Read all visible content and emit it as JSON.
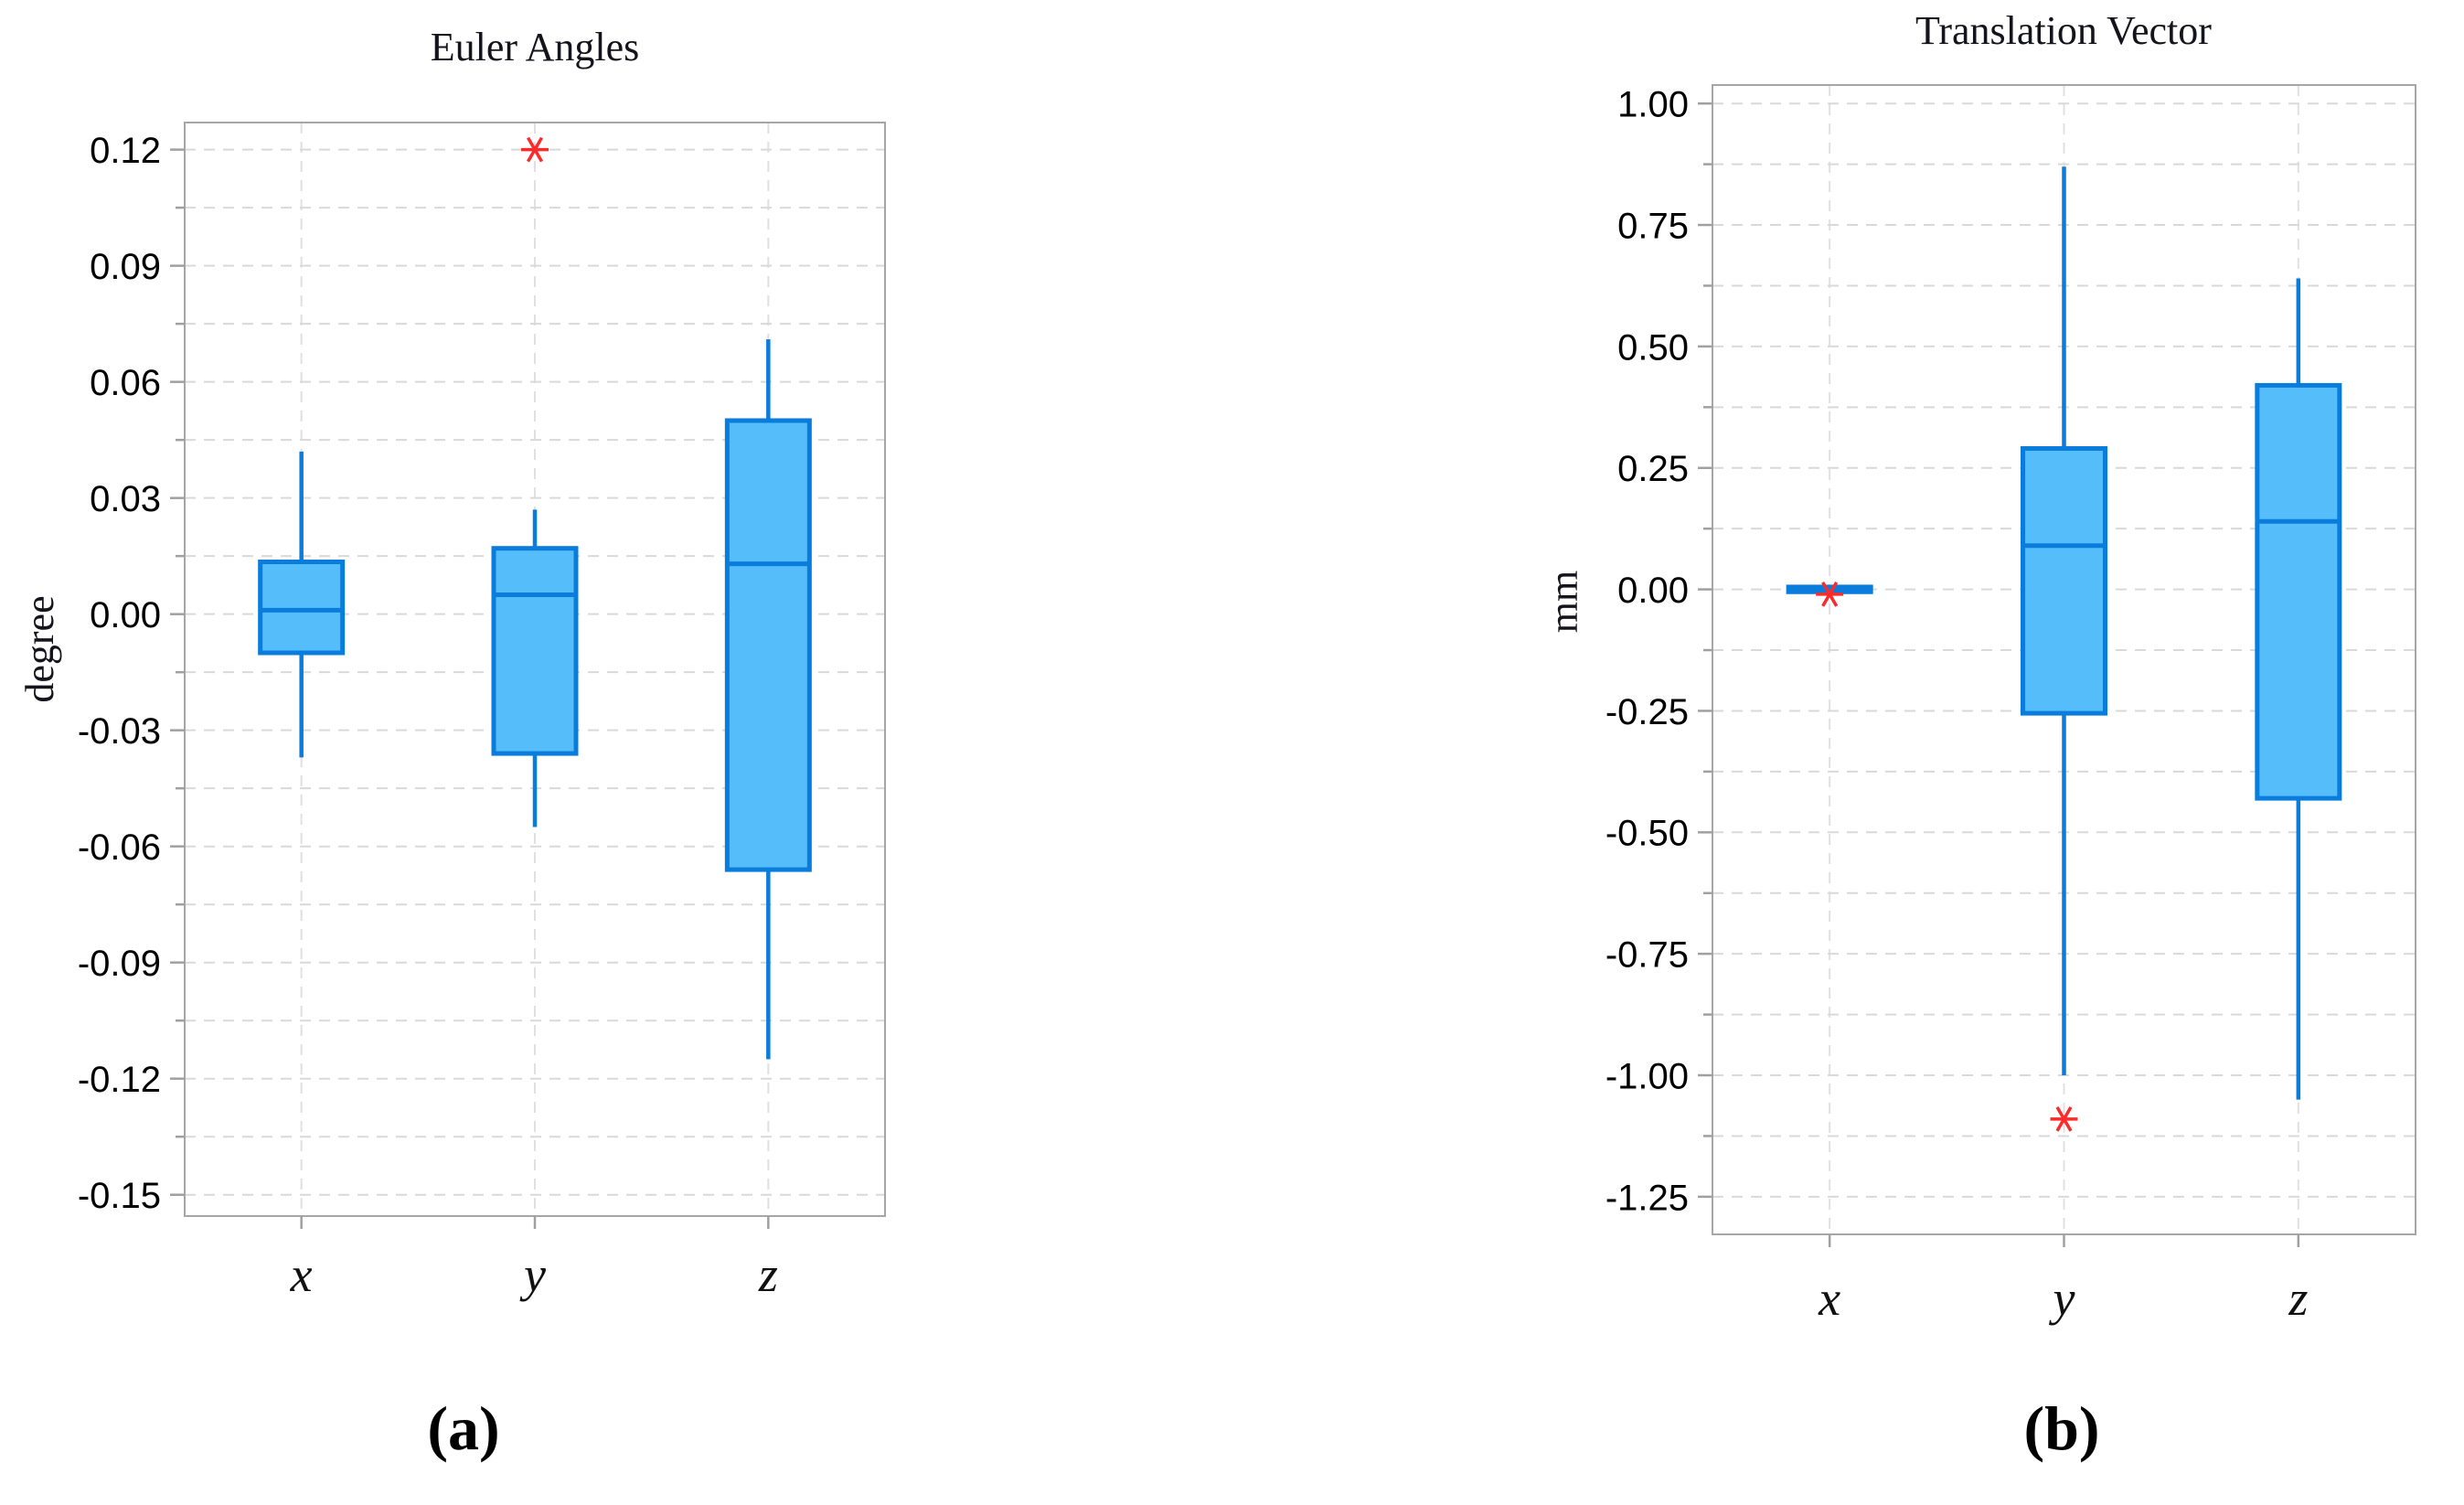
{
  "figure": {
    "background": "#ffffff",
    "panels": [
      "a",
      "b"
    ]
  },
  "chart_data": [
    {
      "type": "box",
      "title": "Euler Angles",
      "ylabel": "degree",
      "caption": "(a)",
      "categories": [
        "x",
        "y",
        "z"
      ],
      "ylim": [
        -0.1555,
        0.127
      ],
      "ytick_labels": [
        "0.12",
        "0.09",
        "0.06",
        "0.03",
        "0.00",
        "-0.03",
        "-0.06",
        "-0.09",
        "-0.12",
        "-0.15"
      ],
      "yticks_major": [
        0.12,
        0.09,
        0.06,
        0.03,
        0.0,
        -0.03,
        -0.06,
        -0.09,
        -0.12,
        -0.15
      ],
      "yticks_minor": [
        0.105,
        0.075,
        0.045,
        0.015,
        -0.015,
        -0.045,
        -0.075,
        -0.105,
        -0.135
      ],
      "grid": "dashed, major and minor horizontal + vertical at each category",
      "legend": "none",
      "series": [
        {
          "category": "x",
          "whislo": -0.037,
          "q1": -0.01,
          "med": 0.001,
          "q3": 0.0135,
          "whishi": 0.042,
          "outliers": []
        },
        {
          "category": "y",
          "whislo": -0.055,
          "q1": -0.036,
          "med": 0.005,
          "q3": 0.017,
          "whishi": 0.027,
          "outliers": [
            0.12
          ]
        },
        {
          "category": "z",
          "whislo": -0.115,
          "q1": -0.066,
          "med": 0.013,
          "q3": 0.05,
          "whishi": 0.071,
          "outliers": []
        }
      ]
    },
    {
      "type": "box",
      "title": "Translation Vector",
      "ylabel": "mm",
      "caption": "(b)",
      "categories": [
        "x",
        "y",
        "z"
      ],
      "ylim": [
        -1.3274,
        1.038
      ],
      "ytick_labels": [
        "1.00",
        "0.75",
        "0.50",
        "0.25",
        "0.00",
        "-0.25",
        "-0.50",
        "-0.75",
        "-1.00",
        "-1.25"
      ],
      "yticks_major": [
        1.0,
        0.75,
        0.5,
        0.25,
        0.0,
        -0.25,
        -0.5,
        -0.75,
        -1.0,
        -1.25
      ],
      "yticks_minor": [
        0.875,
        0.625,
        0.375,
        0.125,
        -0.125,
        -0.375,
        -0.625,
        -0.875,
        -1.125
      ],
      "grid": "dashed, major and minor horizontal + vertical at each category",
      "legend": "none",
      "series": [
        {
          "category": "x",
          "whislo": -0.005,
          "q1": -0.005,
          "med": 0.0,
          "q3": 0.005,
          "whishi": 0.005,
          "outliers": [
            -0.01
          ]
        },
        {
          "category": "y",
          "whislo": -1.0,
          "q1": -0.255,
          "med": 0.09,
          "q3": 0.29,
          "whishi": 0.87,
          "outliers": [
            -1.09
          ]
        },
        {
          "category": "z",
          "whislo": -1.05,
          "q1": -0.43,
          "med": 0.14,
          "q3": 0.42,
          "whishi": 0.64,
          "outliers": []
        }
      ]
    }
  ],
  "style": {
    "box_fill": "#55bdfa",
    "box_stroke": "#0a7cdc",
    "outlier_color": "#fb2b2b",
    "grid_color": "#d9d9d9",
    "vgrid_color": "#e0e0e0",
    "spine_color": "#a6a6a6",
    "tick_color": "#a0a0a0",
    "text_color": "#000000",
    "outlier_marker": "asterisk-6-spoke"
  }
}
